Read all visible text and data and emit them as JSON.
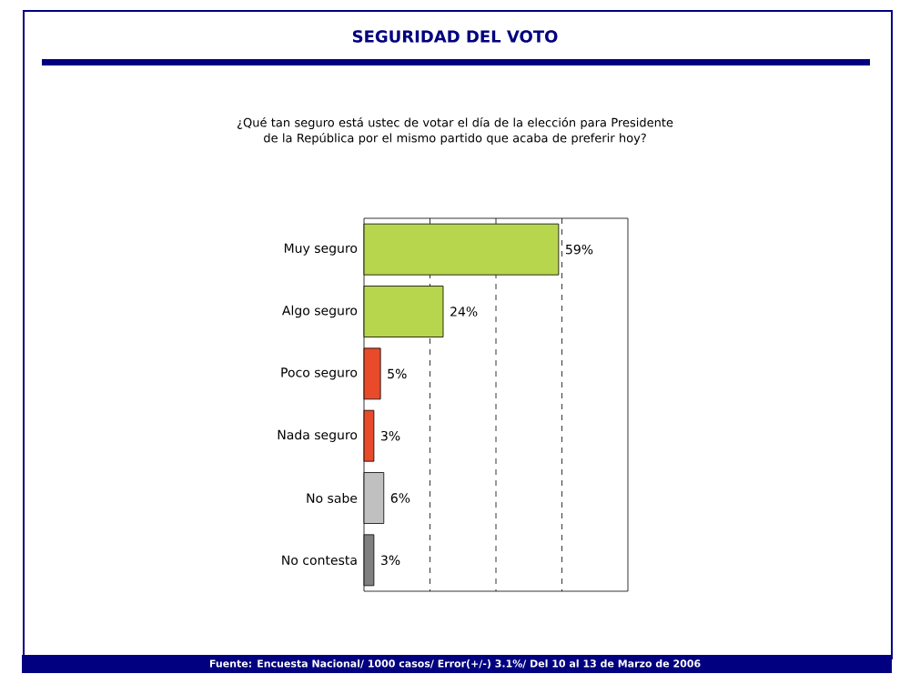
{
  "chart_data": {
    "type": "bar",
    "orientation": "horizontal",
    "title": "SEGURIDAD DEL VOTO",
    "subtitle": "¿Qué tan seguro está ustec de votar el día de la elección para Presidente de la República por el mismo partido que acaba de preferir hoy?",
    "categories": [
      "Muy seguro",
      "Algo seguro",
      "Poco seguro",
      "Nada seguro",
      "No sabe",
      "No contesta"
    ],
    "values": [
      59,
      24,
      5,
      3,
      6,
      3
    ],
    "colors": [
      "#b8d54e",
      "#b8d54e",
      "#e84a2a",
      "#e84a2a",
      "#c0c0c0",
      "#808080"
    ],
    "value_labels": [
      "59%",
      "24%",
      "5%",
      "3%",
      "6%",
      "3%"
    ],
    "xlim": [
      0,
      80
    ],
    "xticks": [
      {
        "value": 20,
        "label": null
      },
      {
        "value": 40,
        "label": null
      },
      {
        "value": 60,
        "label": null
      }
    ],
    "grid": "x",
    "tick_labels": "y",
    "annotations": [
      "Fuente: Encuesta Nacional/ 1000 casos/ Error(+/-) 3.1%/ Del 10 al 13 de Marzo de 2006"
    ]
  }
}
